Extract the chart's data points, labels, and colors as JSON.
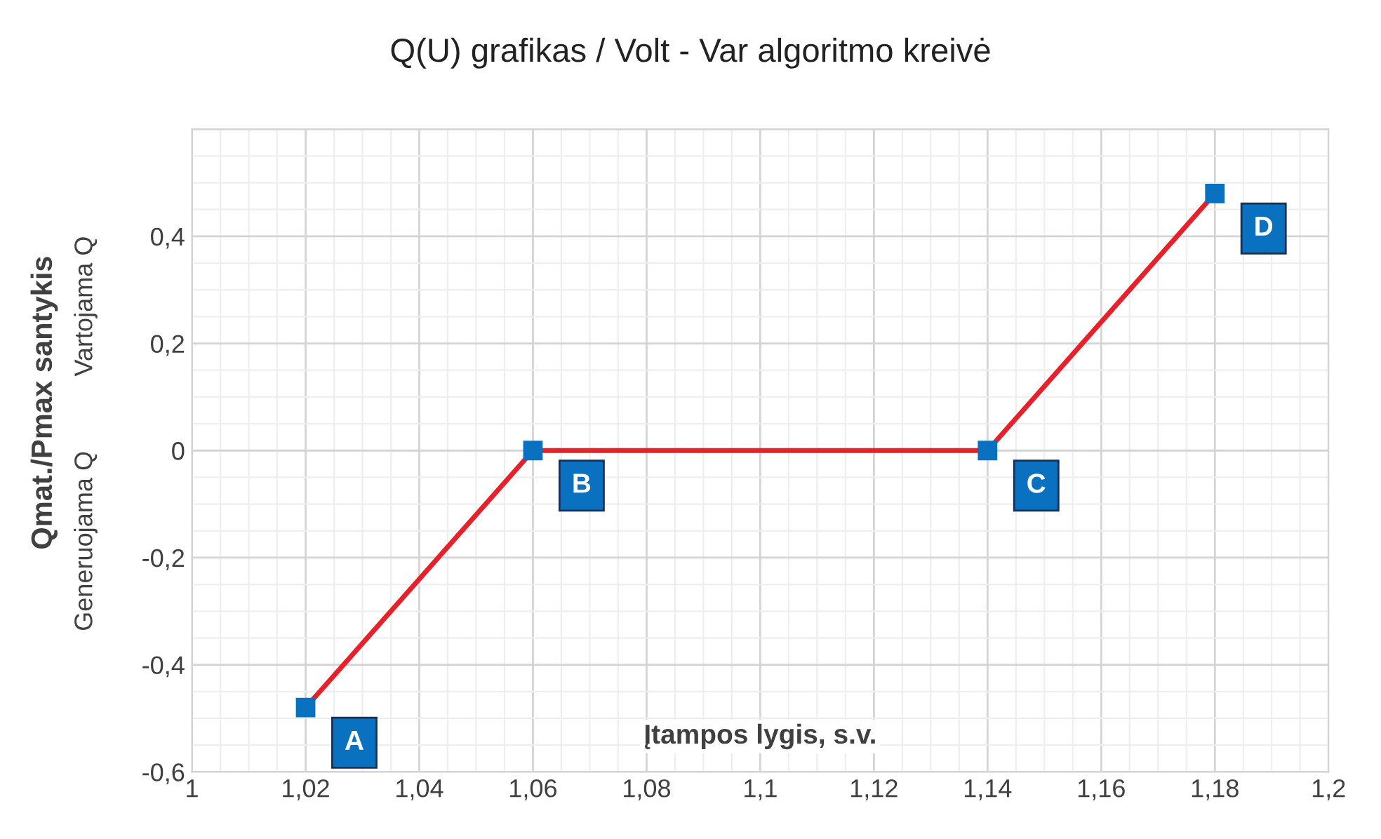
{
  "chart_data": {
    "type": "line",
    "title": "Q(U) grafikas / Volt - Var algoritmo kreivė",
    "xlabel": "Įtampos lygis, s.v.",
    "ylabel": "Qmat./Pmax santykis",
    "x": [
      1.02,
      1.06,
      1.14,
      1.18
    ],
    "series": [
      {
        "color": "#e8202a",
        "values": [
          -0.48,
          0,
          0,
          0.48
        ]
      },
      {
        "type": "scatter",
        "color": "#0a70c0",
        "marker": "square",
        "values": [
          -0.48,
          0,
          0,
          0.48
        ]
      }
    ],
    "line_style": "solid",
    "xlim": [
      1,
      1.2
    ],
    "ylim": [
      -0.6,
      0.6
    ],
    "xticks": [
      1,
      {
        "value": 1.02,
        "label": "1,02"
      },
      {
        "value": 1.04,
        "label": "1,04"
      },
      {
        "value": 1.06,
        "label": "1,06"
      },
      {
        "value": 1.08,
        "label": "1,08"
      },
      {
        "value": 1.1,
        "label": "1,1"
      },
      {
        "value": 1.12,
        "label": "1,12"
      },
      {
        "value": 1.14,
        "label": "1,14"
      },
      {
        "value": 1.16,
        "label": "1,16"
      },
      {
        "value": 1.18,
        "label": "1,18"
      },
      {
        "value": 1.2,
        "label": "1,2"
      }
    ],
    "yticks": [
      {
        "value": -0.6,
        "label": "-0,6"
      },
      {
        "value": -0.4,
        "label": "-0,4"
      },
      {
        "value": -0.2,
        "label": "-0,2"
      },
      0,
      {
        "value": 0.2,
        "label": "0,2"
      },
      {
        "value": 0.4,
        "label": "0,4"
      },
      {
        "value": 0.6,
        "label": null
      }
    ],
    "grid": true,
    "annotations": [
      {
        "text": "A",
        "x": 1.02,
        "y": -0.48
      },
      {
        "text": "B",
        "x": 1.06,
        "y": 0
      },
      {
        "text": "C",
        "x": 1.14,
        "y": 0
      },
      {
        "text": "D",
        "x": 1.18,
        "y": 0.48
      },
      "Generuojama Q",
      "Vartojama Q"
    ]
  }
}
